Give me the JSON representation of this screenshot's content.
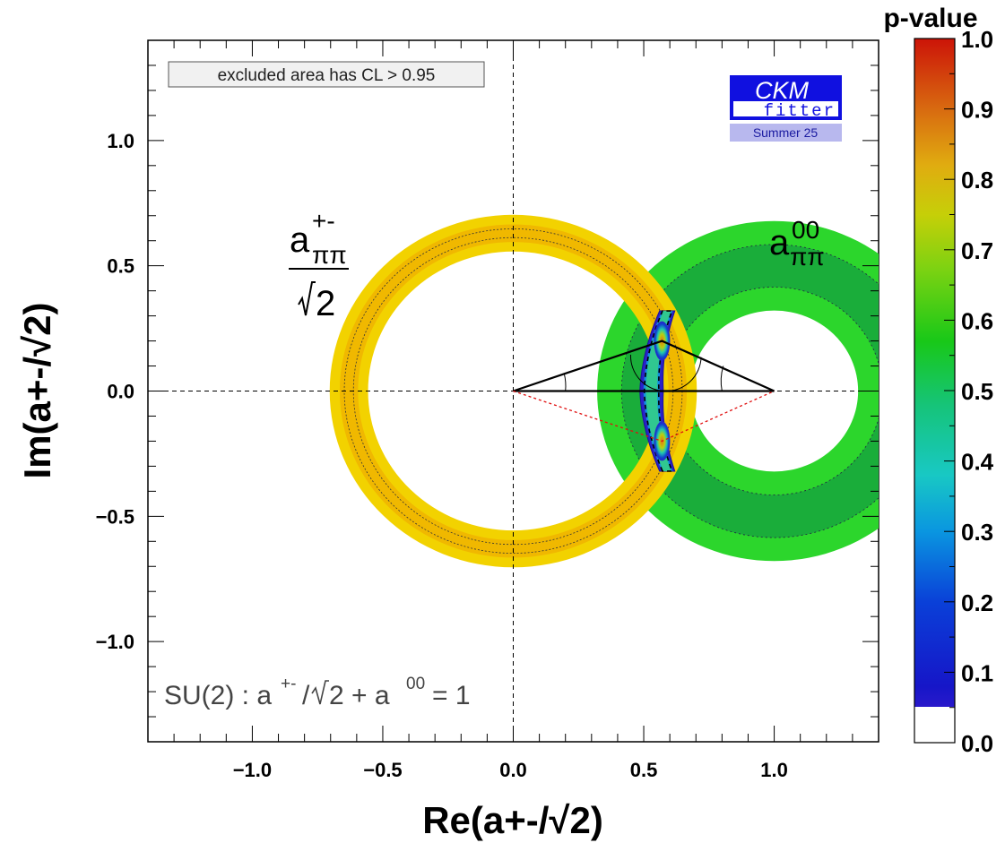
{
  "chart_data": {
    "type": "contour",
    "title": "",
    "xlabel": "Re(a+-/√2)",
    "ylabel": "Im(a+-/√2)",
    "xlim": [
      -1.4,
      1.4
    ],
    "ylim": [
      -1.4,
      1.4
    ],
    "x_ticks": [
      -1.0,
      -0.5,
      0.0,
      0.5,
      1.0
    ],
    "x_tick_labels": [
      "−1.0",
      "−0.5",
      "0.0",
      "0.5",
      "1.0"
    ],
    "y_ticks": [
      1.0,
      0.5,
      0.0,
      -0.5,
      -1.0
    ],
    "y_tick_labels": [
      "1.0",
      "0.5",
      "0.0",
      "−0.5",
      "−1.0"
    ],
    "annotation": "excluded area has CL > 0.95",
    "colorbar": {
      "title": "p-value",
      "range": [
        0.0,
        1.0
      ],
      "ticks": [
        1.0,
        0.9,
        0.8,
        0.7,
        0.6,
        0.5,
        0.4,
        0.3,
        0.2,
        0.1,
        0.0
      ],
      "tick_labels": [
        "1.0",
        "0.9",
        "0.8",
        "0.7",
        "0.6",
        "0.5",
        "0.4",
        "0.3",
        "0.2",
        "0.1",
        "0.0"
      ]
    },
    "regions": [
      {
        "name": "a+- ring",
        "center": [
          0.0,
          0.0
        ],
        "radius": 0.63,
        "width": 0.07,
        "color": "#f2d200",
        "inner_color": "#f0b800"
      },
      {
        "name": "a00 ring",
        "center": [
          1.0,
          0.0
        ],
        "radius": 0.5,
        "width": 0.17,
        "color": "#2cd62c",
        "inner_color": "#1aad3a"
      },
      {
        "name": "intersection",
        "center": [
          0.56,
          0.0
        ],
        "height": 0.64,
        "peak_pvalue": 0.85
      }
    ],
    "triangle": {
      "apex": [
        0.57,
        0.2
      ],
      "mirror_apex": [
        0.57,
        -0.2
      ],
      "base": [
        [
          0.0,
          0.0
        ],
        [
          1.0,
          0.0
        ]
      ]
    },
    "labels": {
      "apm_main": "a",
      "apm_sup": "+-",
      "apm_sub": "ππ",
      "apm_den": "2",
      "a00_main": "a",
      "a00_sup": "00",
      "a00_sub": "ππ"
    },
    "su2_relation": {
      "prefix": "SU(2) : a",
      "sup1": "+-",
      "mid": "/",
      "root_arg": "2",
      "plus": "+ a",
      "sup2": "00",
      "suffix": "= 1"
    }
  },
  "logo": {
    "title": "CKM",
    "subtitle": "fitter",
    "season": "Summer 25"
  },
  "colors": {
    "ring_yellow": "#f2d200",
    "ring_orange": "#f0b800",
    "ring_green": "#2cd62c",
    "ring_dark_green": "#1aad3a",
    "logo_blue": "#1010e0",
    "logo_band": "#b8b8ee"
  }
}
